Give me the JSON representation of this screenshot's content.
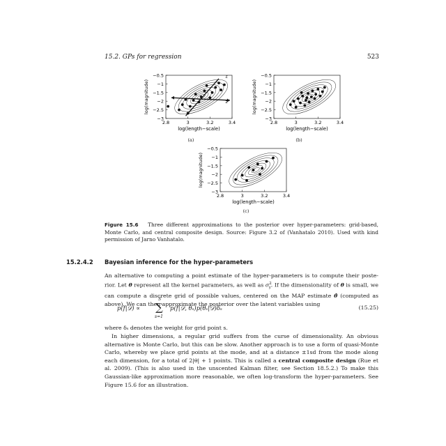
{
  "header": {
    "running_title": "15.2.  GPs for regression",
    "page_number": "523"
  },
  "figure": {
    "y_ticks": [
      "−0.5",
      "−1",
      "−1.5",
      "−2",
      "−2.5",
      "−3"
    ],
    "x_ticks": [
      "2.8",
      "3",
      "3.2",
      "3.4"
    ],
    "xlabel": "log(length−scale)",
    "ylabel": "log(magnitude)",
    "panel_labels": [
      "(a)",
      "(b)",
      "(c)"
    ],
    "annotations": [
      "z",
      "z"
    ]
  },
  "chart_data": [
    {
      "type": "scatter",
      "panel": "(a)",
      "xlabel": "log(length−scale)",
      "ylabel": "log(magnitude)",
      "xlim": [
        2.8,
        3.4
      ],
      "ylim": [
        -3,
        -0.5
      ],
      "x_ticks": [
        "2.8",
        "3",
        "3.2",
        "3.4"
      ],
      "y_ticks": [
        "−0.5",
        "−1",
        "−1.5",
        "−2",
        "−2.5",
        "−3"
      ],
      "overlay": "elliptical posterior contours with a grid of points along two axis lines",
      "points": [
        {
          "x": 2.82,
          "y": -2.3
        },
        {
          "x": 2.92,
          "y": -2.5
        },
        {
          "x": 2.95,
          "y": -2.2
        },
        {
          "x": 2.98,
          "y": -1.9
        },
        {
          "x": 3.0,
          "y": -2.7
        },
        {
          "x": 3.02,
          "y": -2.3
        },
        {
          "x": 3.05,
          "y": -1.95
        },
        {
          "x": 3.07,
          "y": -1.6
        },
        {
          "x": 3.1,
          "y": -2.05
        },
        {
          "x": 3.12,
          "y": -1.75
        },
        {
          "x": 3.15,
          "y": -1.4
        },
        {
          "x": 3.17,
          "y": -1.1
        },
        {
          "x": 3.2,
          "y": -1.8
        },
        {
          "x": 3.22,
          "y": -1.5
        },
        {
          "x": 3.25,
          "y": -1.2
        },
        {
          "x": 3.28,
          "y": -0.95
        },
        {
          "x": 3.3,
          "y": -1.35
        },
        {
          "x": 3.33,
          "y": -1.05
        }
      ]
    },
    {
      "type": "scatter",
      "panel": "(b)",
      "xlabel": "log(length−scale)",
      "ylabel": "log(magnitude)",
      "xlim": [
        2.8,
        3.4
      ],
      "ylim": [
        -3,
        -0.5
      ],
      "x_ticks": [
        "2.8",
        "3",
        "3.2",
        "3.4"
      ],
      "y_ticks": [
        "−0.5",
        "−1",
        "−1.5",
        "−2",
        "−2.5",
        "−3"
      ],
      "overlay": "elliptical posterior contours with random Monte Carlo samples",
      "points": [
        {
          "x": 2.95,
          "y": -2.2
        },
        {
          "x": 2.98,
          "y": -2.0
        },
        {
          "x": 3.0,
          "y": -2.35
        },
        {
          "x": 3.02,
          "y": -1.85
        },
        {
          "x": 3.04,
          "y": -2.1
        },
        {
          "x": 3.06,
          "y": -1.7
        },
        {
          "x": 3.08,
          "y": -2.25
        },
        {
          "x": 3.09,
          "y": -1.95
        },
        {
          "x": 3.11,
          "y": -1.55
        },
        {
          "x": 3.12,
          "y": -2.05
        },
        {
          "x": 3.14,
          "y": -1.75
        },
        {
          "x": 3.15,
          "y": -1.4
        },
        {
          "x": 3.17,
          "y": -1.85
        },
        {
          "x": 3.18,
          "y": -1.6
        },
        {
          "x": 3.2,
          "y": -1.3
        },
        {
          "x": 3.22,
          "y": -1.7
        },
        {
          "x": 3.24,
          "y": -1.45
        },
        {
          "x": 3.26,
          "y": -1.2
        },
        {
          "x": 3.1,
          "y": -1.8
        },
        {
          "x": 3.05,
          "y": -1.5
        }
      ]
    },
    {
      "type": "scatter",
      "panel": "(c)",
      "xlabel": "log(length−scale)",
      "ylabel": "log(magnitude)",
      "xlim": [
        2.8,
        3.4
      ],
      "ylim": [
        -3,
        -0.5
      ],
      "x_ticks": [
        "2.8",
        "3",
        "3.2",
        "3.4"
      ],
      "y_ticks": [
        "−0.5",
        "−1",
        "−1.5",
        "−2",
        "−2.5",
        "−3"
      ],
      "overlay": "elliptical posterior contours with central composite design points",
      "points": [
        {
          "x": 2.94,
          "y": -2.3
        },
        {
          "x": 3.0,
          "y": -2.05
        },
        {
          "x": 3.04,
          "y": -2.35
        },
        {
          "x": 3.1,
          "y": -1.75
        },
        {
          "x": 3.14,
          "y": -1.4
        },
        {
          "x": 3.18,
          "y": -1.65
        },
        {
          "x": 3.22,
          "y": -1.25
        },
        {
          "x": 3.28,
          "y": -1.05
        },
        {
          "x": 3.06,
          "y": -1.6
        },
        {
          "x": 3.16,
          "y": -2.0
        }
      ]
    }
  ],
  "caption": {
    "label": "Figure 15.6",
    "text": "Three different approximations to the posterior over hyper-parameters: grid-based, Monte Carlo, and central composite design.   Source: Figure 3.2 of (Vanhatalo 2010).   Used with kind permission of Jarno Vanhatalo."
  },
  "section": {
    "number": "15.2.4.2",
    "title": "Bayesian inference for the hyper-parameters"
  },
  "paragraph1": {
    "l1": "An alternative to computing a point estimate of the hyper-parameters is to compute their poste-",
    "l2a": "rior. Let ",
    "theta": "θ",
    "l2b": " represent all the kernel parameters, as well as ",
    "sigma": "σ",
    "sigma_sub": "y",
    "sigma_sup": "2",
    "l2c": ". If the dimensionality of ",
    "l2d": " is small,",
    "l3a": "we can compute a discrete grid of possible values, centered on the MAP estimate ",
    "theta_hat": "θ̂",
    "l3b": " (computed",
    "l4": "as above). We can then approximate the posterior over the latent variables using"
  },
  "equation": {
    "lhs": "p(f|𝒟) ∝",
    "sum_top": "S",
    "sum_symbol": "∑",
    "sum_bottom": "s=1",
    "rhs": "p(f|𝒟, θₛ)p(θₛ|𝒟)δₛ",
    "number": "(15.25)"
  },
  "paragraph2": {
    "text1": "where δₛ denotes the weight for grid point s."
  },
  "paragraph3": {
    "text1": "In higher dimensions, a regular grid suffers from the curse of dimensionality. An obvious alternative is Monte Carlo, but this can be slow. Another approach is to use a form of quasi-Monte Carlo, whereby we place grid points at the mode, and at a distance ±1sd from the mode along each dimension, for a total of 2|θ| + 1 points. This is called a ",
    "bold": "central composite design",
    "text2": " (Rue et al. 2009). (This is also used in the unscented Kalman filter, see Section 18.5.2.) To make this Gaussian-like approximation more reasonable, we often log-transform the hyper-parameters. See Figure 15.6 for an illustration."
  }
}
